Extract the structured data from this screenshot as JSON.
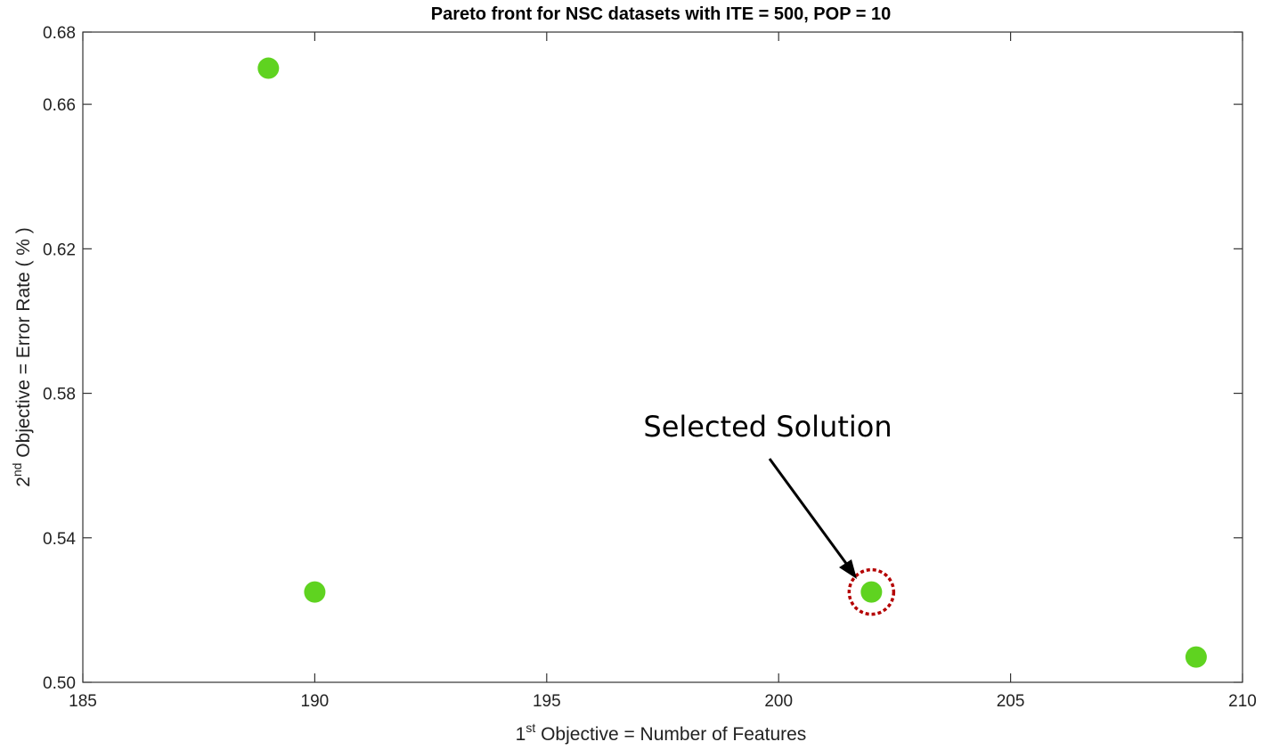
{
  "chart_data": {
    "type": "scatter",
    "title": "Pareto front for NSC datasets with ITE = 500, POP = 10",
    "xlabel": {
      "pre": "1",
      "sup": "st",
      "post": " Objective = Number of Features"
    },
    "ylabel": {
      "pre": "2",
      "sup": "nd",
      "post": " Objective = Error Rate ( % )"
    },
    "xlim": [
      185,
      210
    ],
    "ylim": [
      0.5,
      0.68
    ],
    "xticks": [
      "185",
      "190",
      "195",
      "200",
      "205",
      "210"
    ],
    "yticks": [
      "0.50",
      "0.54",
      "0.58",
      "0.62",
      "0.66",
      "0.68"
    ],
    "grid": false,
    "marker_color": "#5fd320",
    "highlight_color": "#b40000",
    "points": [
      {
        "x": 189,
        "y": 0.67
      },
      {
        "x": 190,
        "y": 0.525
      },
      {
        "x": 202,
        "y": 0.525,
        "selected": true
      },
      {
        "x": 209,
        "y": 0.507
      }
    ],
    "annotation": {
      "text": "Selected Solution",
      "target_index": 2
    }
  }
}
